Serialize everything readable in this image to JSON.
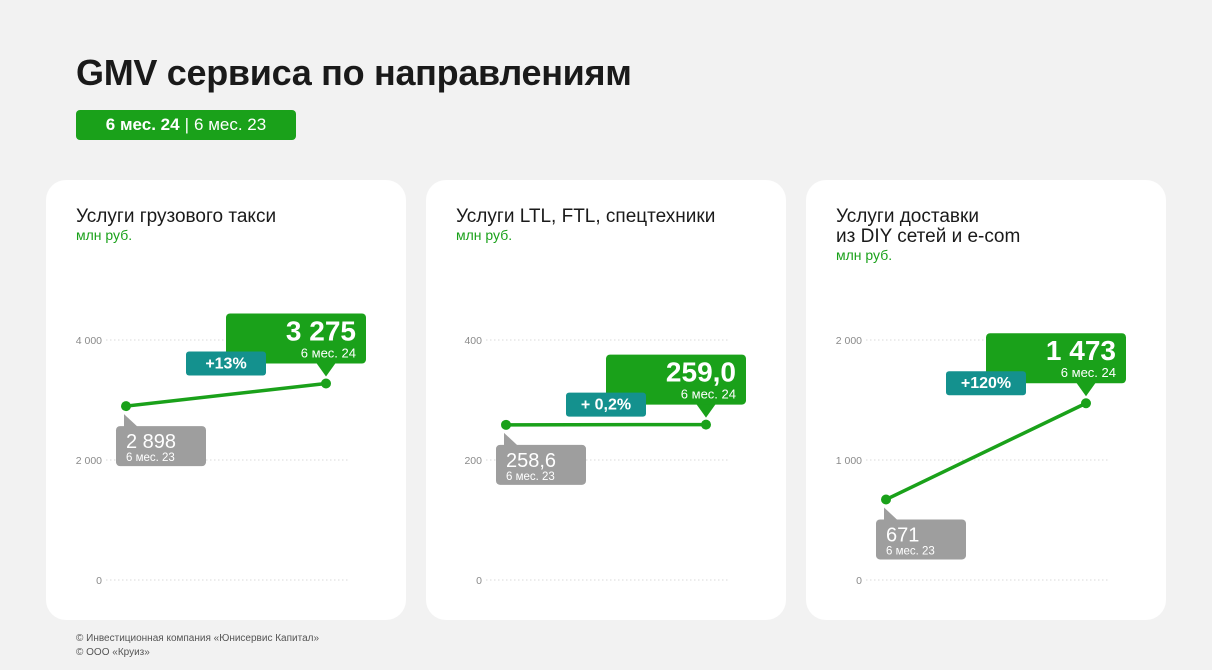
{
  "title": "GMV сервиса по направлениям",
  "period_legend": {
    "current": "6 мес. 24",
    "separator": "|",
    "previous": "6 мес. 23"
  },
  "colors": {
    "green": "#1aa11a",
    "teal": "#14918e",
    "gray": "#9e9e9e",
    "white": "#ffffff"
  },
  "chart_data": [
    {
      "type": "line",
      "title": "Услуги грузового такси",
      "ylabel": "млн руб.",
      "ylim": [
        0,
        4000
      ],
      "yticks": [
        0,
        2000,
        4000
      ],
      "ytick_labels": [
        "0",
        "2 000",
        "4 000"
      ],
      "grid": true,
      "points": [
        {
          "period": "6 мес. 23",
          "value": 2898,
          "label": "2 898"
        },
        {
          "period": "6 мес. 24",
          "value": 3275,
          "label": "3 275"
        }
      ],
      "change": "+13%"
    },
    {
      "type": "line",
      "title": "Услуги LTL, FTL, спецтехники",
      "ylabel": "млн руб.",
      "ylim": [
        0,
        400
      ],
      "yticks": [
        0,
        200,
        400
      ],
      "ytick_labels": [
        "0",
        "200",
        "400"
      ],
      "grid": true,
      "points": [
        {
          "period": "6 мес. 23",
          "value": 258.6,
          "label": "258,6"
        },
        {
          "period": "6 мес. 24",
          "value": 259.0,
          "label": "259,0"
        }
      ],
      "change": "+ 0,2%"
    },
    {
      "type": "line",
      "title": "Услуги доставки\nиз DIY сетей и e-com",
      "ylabel": "млн руб.",
      "ylim": [
        0,
        2000
      ],
      "yticks": [
        0,
        1000,
        2000
      ],
      "ytick_labels": [
        "0",
        "1 000",
        "2 000"
      ],
      "grid": true,
      "points": [
        {
          "period": "6 мес. 23",
          "value": 671,
          "label": "671"
        },
        {
          "period": "6 мес. 24",
          "value": 1473,
          "label": "1 473"
        }
      ],
      "change": "+120%"
    }
  ],
  "footer": [
    "© Инвестиционная компания «Юнисервис Капитал»",
    "© ООО «Круиз»"
  ]
}
